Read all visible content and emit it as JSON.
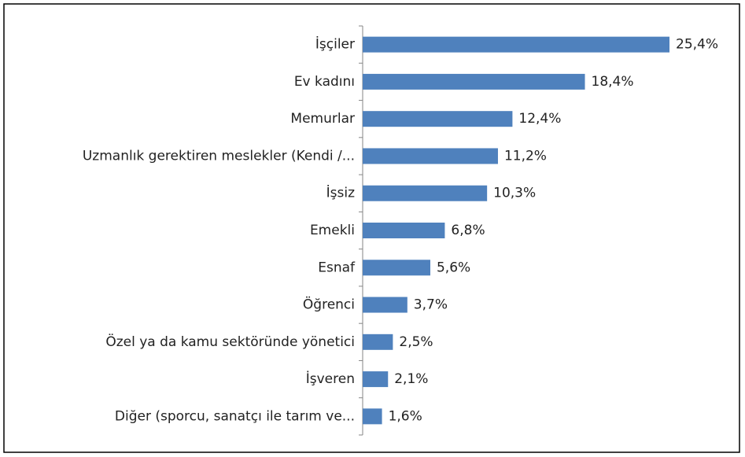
{
  "chart_data": {
    "type": "bar",
    "orientation": "horizontal",
    "color": "#4f81bd",
    "categories": [
      "İşçiler",
      "Ev kadını",
      "Memurlar",
      "Uzmanlık gerektiren meslekler (Kendi /...",
      "İşsiz",
      "Emekli",
      "Esnaf",
      "Öğrenci",
      "Özel ya da kamu sektöründe yönetici",
      "İşveren",
      "Diğer (sporcu, sanatçı ile tarım ve..."
    ],
    "values": [
      25.4,
      18.4,
      12.4,
      11.2,
      10.3,
      6.8,
      5.6,
      3.7,
      2.5,
      2.1,
      1.6
    ],
    "value_labels": [
      "25,4%",
      "18,4%",
      "12,4%",
      "11,2%",
      "10,3%",
      "6,8%",
      "5,6%",
      "3,7%",
      "2,5%",
      "2,1%",
      "1,6%"
    ]
  }
}
